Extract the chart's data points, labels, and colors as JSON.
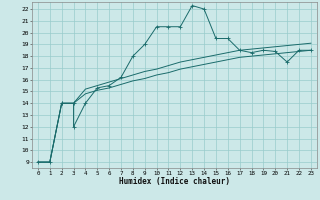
{
  "xlabel": "Humidex (Indice chaleur)",
  "xlim": [
    -0.5,
    23.5
  ],
  "ylim": [
    8.5,
    22.6
  ],
  "xticks": [
    0,
    1,
    2,
    3,
    4,
    5,
    6,
    7,
    8,
    9,
    10,
    11,
    12,
    13,
    14,
    15,
    16,
    17,
    18,
    19,
    20,
    21,
    22,
    23
  ],
  "yticks": [
    9,
    10,
    11,
    12,
    13,
    14,
    15,
    16,
    17,
    18,
    19,
    20,
    21,
    22
  ],
  "bg_color": "#cce8e8",
  "grid_color": "#99cccc",
  "line_color": "#1a6b6b",
  "curve_main_x": [
    0,
    1,
    2,
    2,
    3,
    3,
    4,
    5,
    6,
    7,
    8,
    9,
    10,
    11,
    12,
    13,
    14,
    15,
    16,
    17,
    18,
    19,
    20,
    21,
    22,
    23
  ],
  "curve_main_y": [
    9.0,
    9.0,
    14.0,
    14.0,
    14.0,
    12.0,
    14.0,
    15.3,
    15.5,
    16.2,
    18.0,
    19.0,
    20.5,
    20.5,
    20.5,
    22.3,
    22.0,
    19.5,
    19.5,
    18.5,
    18.3,
    18.5,
    18.4,
    17.5,
    18.5,
    18.5
  ],
  "curve_low_x": [
    0,
    1,
    2,
    3,
    4,
    5,
    6,
    7,
    8,
    9,
    10,
    11,
    12,
    13,
    14,
    15,
    16,
    17,
    18,
    19,
    20,
    21,
    22,
    23
  ],
  "curve_low_y": [
    9.0,
    9.0,
    14.0,
    14.0,
    14.8,
    15.1,
    15.3,
    15.6,
    15.9,
    16.1,
    16.4,
    16.6,
    16.9,
    17.1,
    17.3,
    17.5,
    17.7,
    17.9,
    18.0,
    18.1,
    18.2,
    18.3,
    18.4,
    18.5
  ],
  "curve_high_x": [
    0,
    1,
    2,
    3,
    4,
    5,
    6,
    7,
    8,
    9,
    10,
    11,
    12,
    13,
    14,
    15,
    16,
    17,
    18,
    19,
    20,
    21,
    22,
    23
  ],
  "curve_high_y": [
    9.0,
    9.0,
    14.0,
    14.0,
    15.2,
    15.5,
    15.8,
    16.1,
    16.4,
    16.7,
    16.9,
    17.2,
    17.5,
    17.7,
    17.9,
    18.1,
    18.3,
    18.5,
    18.6,
    18.7,
    18.8,
    18.9,
    19.0,
    19.1
  ]
}
